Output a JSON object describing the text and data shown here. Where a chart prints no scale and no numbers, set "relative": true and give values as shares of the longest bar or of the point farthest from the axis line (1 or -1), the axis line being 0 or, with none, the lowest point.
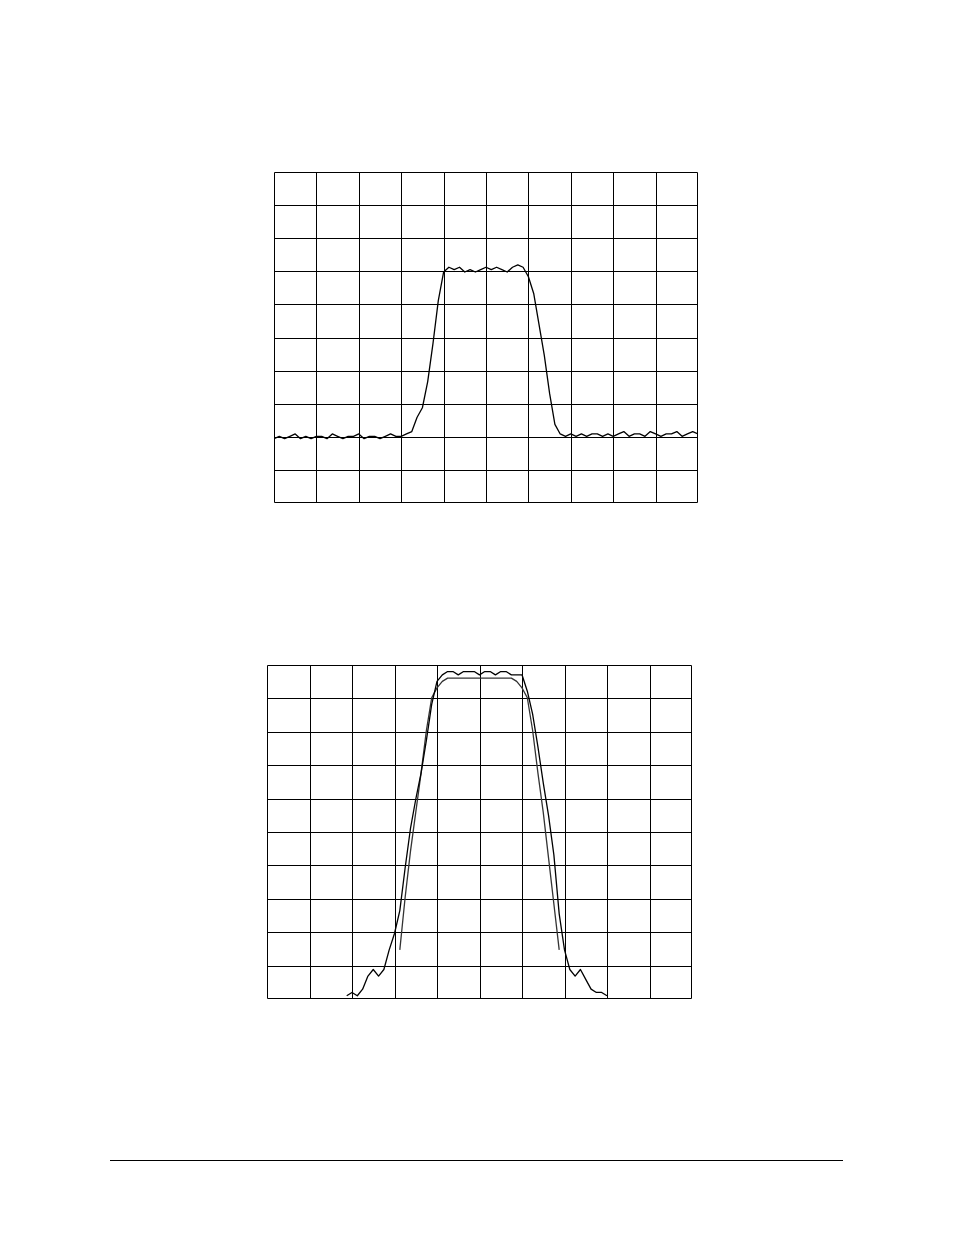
{
  "chart_data": [
    {
      "type": "line",
      "relative": true,
      "grid": true,
      "legend": false,
      "marker": "none",
      "categories": [
        null,
        null,
        null,
        null,
        null,
        null,
        null,
        null,
        null,
        null,
        null,
        null,
        null,
        null,
        null,
        null,
        null,
        null,
        null,
        null,
        null,
        null,
        null,
        null,
        null,
        null,
        null,
        null,
        null,
        null,
        null,
        null,
        null,
        null,
        null,
        null,
        null,
        null,
        null,
        null,
        null,
        null,
        null,
        null,
        null,
        null,
        null,
        null,
        null,
        null,
        null,
        null,
        null,
        null,
        null,
        null,
        null,
        null,
        null,
        null,
        null,
        null,
        null,
        null,
        null,
        null,
        null,
        null,
        null,
        null,
        null,
        null,
        null,
        null,
        null,
        null,
        null,
        null,
        null,
        null,
        null
      ],
      "series": [
        {
          "color": "#000000",
          "values": [
            0.27,
            0.28,
            0.27,
            0.28,
            0.29,
            0.27,
            0.28,
            0.27,
            0.28,
            0.28,
            0.27,
            0.29,
            0.28,
            0.27,
            0.28,
            0.28,
            0.29,
            0.27,
            0.28,
            0.28,
            0.27,
            0.28,
            0.29,
            0.28,
            0.28,
            0.29,
            0.3,
            0.36,
            0.4,
            0.51,
            0.67,
            0.85,
            0.97,
            0.99,
            0.98,
            0.99,
            0.97,
            0.98,
            0.97,
            0.98,
            0.99,
            0.98,
            0.99,
            0.98,
            0.97,
            0.99,
            1.0,
            0.99,
            0.95,
            0.88,
            0.75,
            0.62,
            0.46,
            0.33,
            0.29,
            0.28,
            0.29,
            0.28,
            0.29,
            0.28,
            0.29,
            0.29,
            0.28,
            0.29,
            0.28,
            0.29,
            0.3,
            0.28,
            0.29,
            0.29,
            0.28,
            0.3,
            0.29,
            0.28,
            0.29,
            0.29,
            0.3,
            0.28,
            0.29,
            0.3,
            0.29
          ]
        }
      ]
    },
    {
      "type": "line",
      "relative": true,
      "grid": true,
      "legend": false,
      "marker": "none",
      "categories": [
        null,
        null,
        null,
        null,
        null,
        null,
        null,
        null,
        null,
        null,
        null,
        null,
        null,
        null,
        null,
        null,
        null,
        null,
        null,
        null,
        null,
        null,
        null,
        null,
        null,
        null,
        null,
        null,
        null,
        null,
        null,
        null,
        null,
        null,
        null,
        null,
        null,
        null,
        null,
        null,
        null,
        null,
        null,
        null,
        null,
        null,
        null,
        null,
        null,
        null,
        null,
        null,
        null,
        null,
        null,
        null,
        null,
        null,
        null,
        null,
        null,
        null,
        null,
        null,
        null,
        null,
        null,
        null,
        null,
        null,
        null,
        null,
        null,
        null,
        null,
        null,
        null,
        null,
        null,
        null,
        null
      ],
      "series": [
        {
          "color": "#000000",
          "values": [
            null,
            null,
            null,
            null,
            null,
            null,
            null,
            null,
            null,
            null,
            null,
            null,
            null,
            null,
            null,
            0.01,
            0.02,
            0.01,
            0.03,
            0.07,
            0.09,
            0.07,
            0.09,
            0.15,
            0.2,
            0.27,
            0.4,
            0.52,
            0.61,
            0.69,
            0.79,
            0.9,
            0.97,
            0.99,
            1.0,
            1.0,
            0.99,
            1.0,
            1.0,
            1.0,
            0.99,
            1.0,
            1.0,
            0.99,
            1.0,
            1.0,
            0.99,
            0.99,
            0.99,
            0.94,
            0.87,
            0.77,
            0.66,
            0.56,
            0.44,
            0.26,
            0.15,
            0.09,
            0.07,
            0.09,
            0.06,
            0.03,
            0.02,
            0.02,
            0.01,
            null,
            null,
            null,
            null,
            null,
            null,
            null,
            null,
            null,
            null,
            null,
            null,
            null,
            null,
            null,
            null
          ]
        },
        {
          "color": "#333333",
          "values": [
            null,
            null,
            null,
            null,
            null,
            null,
            null,
            null,
            null,
            null,
            null,
            null,
            null,
            null,
            null,
            null,
            null,
            null,
            null,
            null,
            null,
            null,
            null,
            null,
            null,
            0.15,
            0.31,
            0.45,
            0.57,
            0.69,
            0.82,
            0.92,
            0.95,
            0.97,
            0.98,
            0.98,
            0.98,
            0.98,
            0.98,
            0.98,
            0.98,
            0.98,
            0.98,
            0.98,
            0.98,
            0.98,
            0.98,
            0.97,
            0.95,
            0.92,
            0.82,
            0.69,
            0.57,
            0.43,
            0.29,
            0.15,
            null,
            null,
            null,
            null,
            null,
            null,
            null,
            null,
            null,
            null,
            null,
            null,
            null,
            null,
            null,
            null,
            null,
            null,
            null,
            null,
            null,
            null,
            null,
            null,
            null
          ]
        }
      ]
    }
  ]
}
